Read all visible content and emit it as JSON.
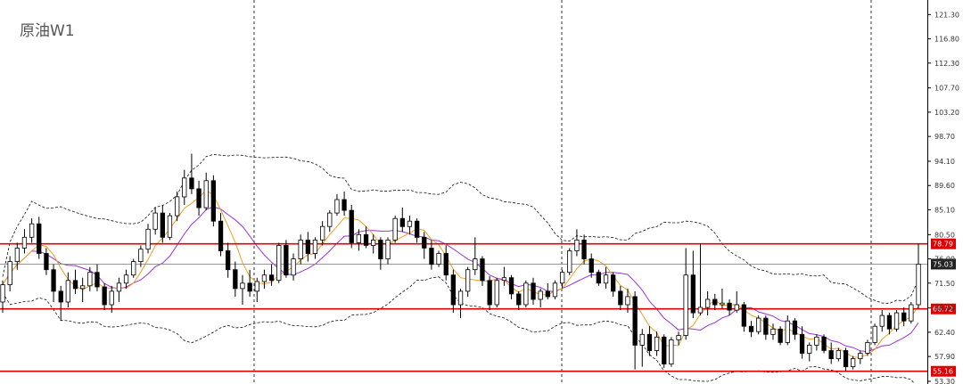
{
  "chart_data": {
    "type": "candlestick",
    "title": "原油W1",
    "ylim": [
      52.8,
      124.0
    ],
    "y_ticks": [
      "121.30",
      "116.80",
      "112.30",
      "107.70",
      "103.20",
      "98.70",
      "94.10",
      "89.60",
      "85.10",
      "80.50",
      "76.00",
      "71.50",
      "66.90",
      "62.40",
      "57.90",
      "53.30"
    ],
    "grid": {
      "vertical_separators": 3,
      "style": "dashed"
    },
    "horizontal_levels": [
      {
        "value": 78.79,
        "label": "78.79",
        "color": "#e00000"
      },
      {
        "value": 66.72,
        "label": "66.72",
        "color": "#e00000"
      },
      {
        "value": 55.16,
        "label": "55.16",
        "color": "#e00000"
      }
    ],
    "current_price": {
      "value": 75.03,
      "label": "75.03",
      "color": "#222222"
    },
    "series": [
      {
        "kind": "candles",
        "values": [
          [
            68.0,
            72.0,
            66.0,
            71.2
          ],
          [
            71.2,
            76.5,
            70.0,
            75.5
          ],
          [
            75.5,
            79.0,
            74.0,
            78.0
          ],
          [
            78.0,
            81.5,
            77.0,
            80.0
          ],
          [
            80.0,
            83.5,
            79.0,
            82.5
          ],
          [
            82.5,
            83.8,
            76.0,
            77.0
          ],
          [
            77.0,
            78.0,
            73.0,
            74.0
          ],
          [
            74.0,
            75.0,
            68.0,
            70.0
          ],
          [
            70.0,
            71.0,
            64.5,
            68.0
          ],
          [
            68.0,
            73.5,
            67.0,
            72.0
          ],
          [
            72.0,
            74.0,
            69.5,
            70.5
          ],
          [
            70.5,
            72.5,
            68.0,
            71.0
          ],
          [
            71.0,
            74.5,
            70.0,
            73.5
          ],
          [
            73.5,
            75.0,
            70.0,
            70.8
          ],
          [
            70.8,
            71.5,
            66.5,
            67.5
          ],
          [
            67.5,
            71.0,
            66.0,
            70.0
          ],
          [
            70.0,
            72.5,
            68.0,
            71.5
          ],
          [
            71.5,
            74.0,
            70.5,
            73.0
          ],
          [
            73.0,
            76.0,
            72.5,
            75.5
          ],
          [
            75.5,
            78.5,
            74.5,
            77.8
          ],
          [
            77.8,
            82.5,
            77.0,
            81.5
          ],
          [
            81.5,
            85.5,
            80.5,
            84.5
          ],
          [
            84.5,
            86.0,
            79.0,
            80.0
          ],
          [
            80.0,
            84.5,
            79.5,
            84.0
          ],
          [
            84.0,
            88.5,
            83.0,
            87.5
          ],
          [
            87.5,
            92.5,
            86.0,
            91.0
          ],
          [
            91.0,
            95.5,
            88.0,
            89.0
          ],
          [
            89.0,
            90.5,
            84.0,
            85.5
          ],
          [
            85.5,
            92.0,
            85.0,
            90.5
          ],
          [
            90.5,
            91.5,
            82.0,
            83.0
          ],
          [
            83.0,
            84.5,
            76.5,
            77.5
          ],
          [
            77.5,
            79.0,
            72.5,
            74.0
          ],
          [
            74.0,
            75.5,
            69.0,
            70.5
          ],
          [
            70.5,
            73.0,
            67.5,
            71.5
          ],
          [
            71.5,
            74.0,
            69.0,
            70.0
          ],
          [
            70.0,
            72.5,
            68.0,
            71.8
          ],
          [
            71.8,
            74.0,
            70.5,
            73.0
          ],
          [
            73.0,
            75.0,
            71.0,
            72.0
          ],
          [
            72.0,
            79.0,
            71.5,
            78.5
          ],
          [
            78.5,
            79.5,
            72.5,
            73.0
          ],
          [
            73.0,
            77.0,
            72.0,
            76.0
          ],
          [
            76.0,
            80.5,
            75.0,
            79.5
          ],
          [
            79.5,
            81.0,
            75.5,
            77.0
          ],
          [
            77.0,
            80.0,
            76.0,
            79.5
          ],
          [
            79.5,
            83.0,
            78.5,
            82.0
          ],
          [
            82.0,
            85.0,
            81.0,
            84.5
          ],
          [
            84.5,
            88.0,
            84.0,
            87.0
          ],
          [
            87.0,
            88.5,
            84.0,
            85.0
          ],
          [
            85.0,
            86.0,
            78.0,
            79.0
          ],
          [
            79.0,
            81.5,
            77.5,
            80.5
          ],
          [
            80.5,
            82.0,
            78.0,
            78.5
          ],
          [
            78.5,
            80.5,
            77.0,
            79.5
          ],
          [
            79.5,
            80.0,
            74.0,
            76.0
          ],
          [
            76.0,
            80.0,
            75.0,
            79.5
          ],
          [
            79.5,
            84.0,
            79.0,
            83.5
          ],
          [
            83.5,
            85.5,
            81.0,
            82.0
          ],
          [
            82.0,
            84.0,
            80.5,
            83.0
          ],
          [
            83.0,
            83.5,
            79.0,
            80.0
          ],
          [
            80.0,
            81.0,
            76.0,
            78.0
          ],
          [
            78.0,
            79.5,
            74.0,
            75.0
          ],
          [
            75.0,
            77.5,
            74.5,
            77.0
          ],
          [
            77.0,
            78.5,
            72.0,
            73.0
          ],
          [
            73.0,
            74.0,
            66.0,
            67.5
          ],
          [
            67.5,
            70.5,
            65.0,
            70.0
          ],
          [
            70.0,
            74.5,
            69.0,
            74.0
          ],
          [
            74.0,
            80.0,
            73.0,
            76.0
          ],
          [
            76.0,
            76.5,
            71.0,
            72.0
          ],
          [
            72.0,
            72.8,
            66.5,
            67.5
          ],
          [
            67.5,
            72.5,
            67.0,
            72.0
          ],
          [
            72.0,
            74.5,
            71.0,
            72.5
          ],
          [
            72.5,
            73.0,
            68.5,
            69.5
          ],
          [
            69.5,
            70.0,
            66.5,
            67.5
          ],
          [
            67.5,
            72.0,
            67.0,
            71.5
          ],
          [
            71.5,
            72.5,
            67.5,
            68.5
          ],
          [
            68.5,
            70.5,
            67.0,
            70.0
          ],
          [
            70.0,
            71.5,
            68.5,
            69.0
          ],
          [
            69.0,
            72.0,
            68.5,
            71.5
          ],
          [
            71.5,
            74.0,
            70.5,
            73.5
          ],
          [
            73.5,
            78.0,
            73.0,
            77.5
          ],
          [
            77.5,
            81.5,
            76.5,
            79.5
          ],
          [
            79.5,
            80.5,
            75.0,
            76.0
          ],
          [
            76.0,
            77.0,
            72.5,
            73.5
          ],
          [
            73.5,
            74.0,
            71.0,
            71.5
          ],
          [
            71.5,
            74.5,
            70.5,
            73.0
          ],
          [
            73.0,
            73.5,
            69.0,
            70.0
          ],
          [
            70.0,
            71.0,
            66.5,
            67.5
          ],
          [
            67.5,
            70.5,
            66.0,
            69.0
          ],
          [
            69.0,
            70.0,
            55.5,
            60.0
          ],
          [
            60.0,
            63.0,
            56.0,
            62.0
          ],
          [
            62.0,
            63.5,
            58.0,
            59.0
          ],
          [
            59.0,
            62.5,
            58.0,
            61.5
          ],
          [
            61.5,
            62.0,
            55.8,
            56.5
          ],
          [
            56.5,
            61.5,
            56.0,
            61.0
          ],
          [
            61.0,
            62.5,
            60.0,
            61.8
          ],
          [
            61.8,
            78.0,
            61.0,
            73.0
          ],
          [
            73.0,
            77.5,
            65.0,
            66.0
          ],
          [
            66.0,
            78.8,
            65.5,
            67.0
          ],
          [
            67.0,
            70.0,
            65.5,
            68.5
          ],
          [
            68.5,
            69.5,
            66.5,
            67.5
          ],
          [
            67.5,
            70.5,
            66.8,
            67.8
          ],
          [
            67.8,
            68.5,
            65.5,
            66.5
          ],
          [
            66.5,
            70.0,
            66.0,
            67.5
          ],
          [
            67.5,
            68.0,
            62.5,
            63.5
          ],
          [
            63.5,
            64.5,
            61.5,
            62.5
          ],
          [
            62.5,
            65.5,
            62.0,
            65.0
          ],
          [
            65.0,
            65.5,
            61.0,
            62.0
          ],
          [
            62.0,
            64.0,
            61.0,
            63.0
          ],
          [
            63.0,
            63.5,
            60.0,
            60.5
          ],
          [
            60.5,
            65.5,
            60.0,
            64.5
          ],
          [
            64.5,
            65.0,
            61.0,
            62.0
          ],
          [
            62.0,
            63.5,
            57.5,
            58.5
          ],
          [
            58.5,
            60.5,
            57.0,
            60.0
          ],
          [
            60.0,
            62.0,
            59.0,
            61.5
          ],
          [
            61.5,
            62.0,
            58.5,
            59.0
          ],
          [
            59.0,
            60.5,
            56.5,
            57.5
          ],
          [
            57.5,
            59.5,
            57.0,
            59.0
          ],
          [
            59.0,
            59.5,
            55.2,
            56.0
          ],
          [
            56.0,
            58.0,
            55.5,
            57.5
          ],
          [
            57.5,
            59.0,
            56.5,
            58.5
          ],
          [
            58.5,
            61.0,
            58.0,
            60.5
          ],
          [
            60.5,
            64.0,
            60.0,
            63.5
          ],
          [
            63.5,
            66.5,
            62.5,
            65.5
          ],
          [
            65.5,
            66.0,
            62.0,
            63.0
          ],
          [
            63.0,
            66.5,
            62.5,
            66.0
          ],
          [
            66.0,
            67.0,
            63.5,
            64.5
          ],
          [
            64.5,
            68.0,
            64.0,
            67.5
          ],
          [
            67.5,
            78.8,
            66.8,
            75.03
          ]
        ]
      }
    ]
  }
}
